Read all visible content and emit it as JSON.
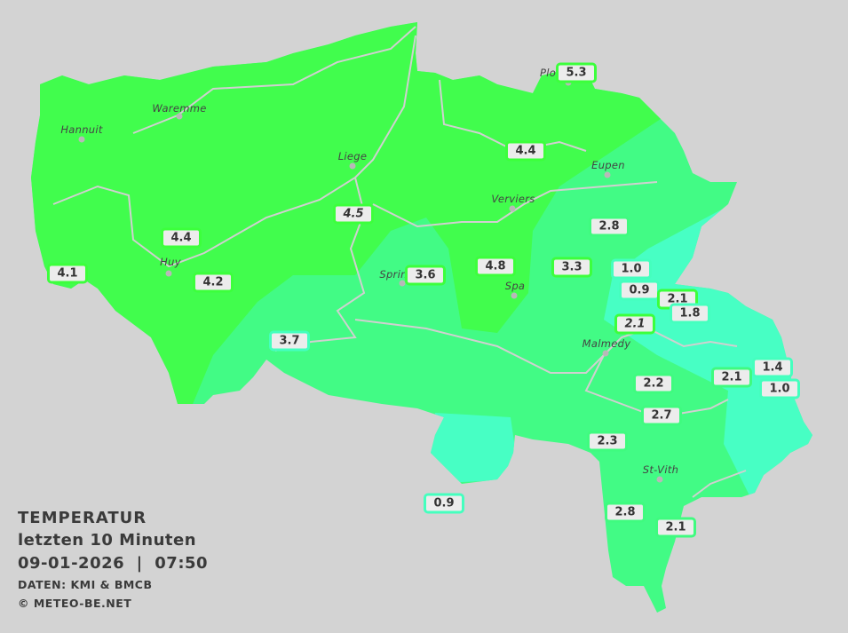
{
  "legend": {
    "title": "TEMPERATUR",
    "subtitle": "letzten 10 Minuten",
    "datetime": "09-01-2026  |  07:50",
    "source": "DATEN: KMI & BMCB",
    "copyright": "© METEO-BE.NET"
  },
  "colors": {
    "background": "#d3d3d3",
    "zone_warm": "#41fd4d",
    "zone_mid": "#42fb85",
    "zone_cool": "#47ffc4",
    "river": "#d0d0d0"
  },
  "cities": [
    {
      "name": "Hannuit"
    },
    {
      "name": "Waremme"
    },
    {
      "name": "Liege"
    },
    {
      "name": "Huy"
    },
    {
      "name": "Verviers"
    },
    {
      "name": "Eupen"
    },
    {
      "name": "Sprin"
    },
    {
      "name": "Spa"
    },
    {
      "name": "Malmedy"
    },
    {
      "name": "St-Vith"
    },
    {
      "name": "Plo"
    }
  ],
  "stations": [
    {
      "value": "5.3"
    },
    {
      "value": "4.4"
    },
    {
      "value": "4.5"
    },
    {
      "value": "4.4"
    },
    {
      "value": "4.1"
    },
    {
      "value": "4.2"
    },
    {
      "value": "3.6"
    },
    {
      "value": "4.8"
    },
    {
      "value": "3.3"
    },
    {
      "value": "2.8"
    },
    {
      "value": "1.0"
    },
    {
      "value": "0.9"
    },
    {
      "value": "2.1"
    },
    {
      "value": "1.8"
    },
    {
      "value": "2.1"
    },
    {
      "value": "3.7"
    },
    {
      "value": "2.2"
    },
    {
      "value": "2.1"
    },
    {
      "value": "1.4"
    },
    {
      "value": "1.0"
    },
    {
      "value": "2.7"
    },
    {
      "value": "2.3"
    },
    {
      "value": "0.9"
    },
    {
      "value": "2.8"
    },
    {
      "value": "2.1"
    }
  ]
}
